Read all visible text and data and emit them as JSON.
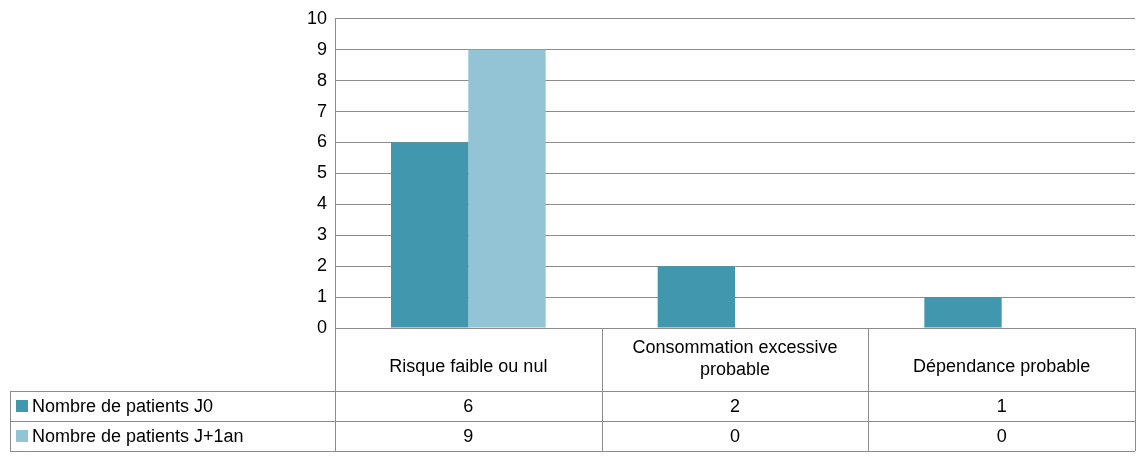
{
  "chart_data": {
    "type": "bar",
    "categories": [
      "Risque faible ou nul",
      "Consommation excessive probable",
      "Dépendance probable"
    ],
    "series": [
      {
        "name": "Nombre de patients J0",
        "color": "#4198ae",
        "values": [
          6,
          2,
          1
        ]
      },
      {
        "name": "Nombre de patients J+1an",
        "color": "#93c4d6",
        "values": [
          9,
          0,
          0
        ]
      }
    ],
    "ylim": [
      0,
      10
    ],
    "yticks": [
      0,
      1,
      2,
      3,
      4,
      5,
      6,
      7,
      8,
      9,
      10
    ],
    "grid": "y",
    "legend": "bottom",
    "data_labels": true
  }
}
